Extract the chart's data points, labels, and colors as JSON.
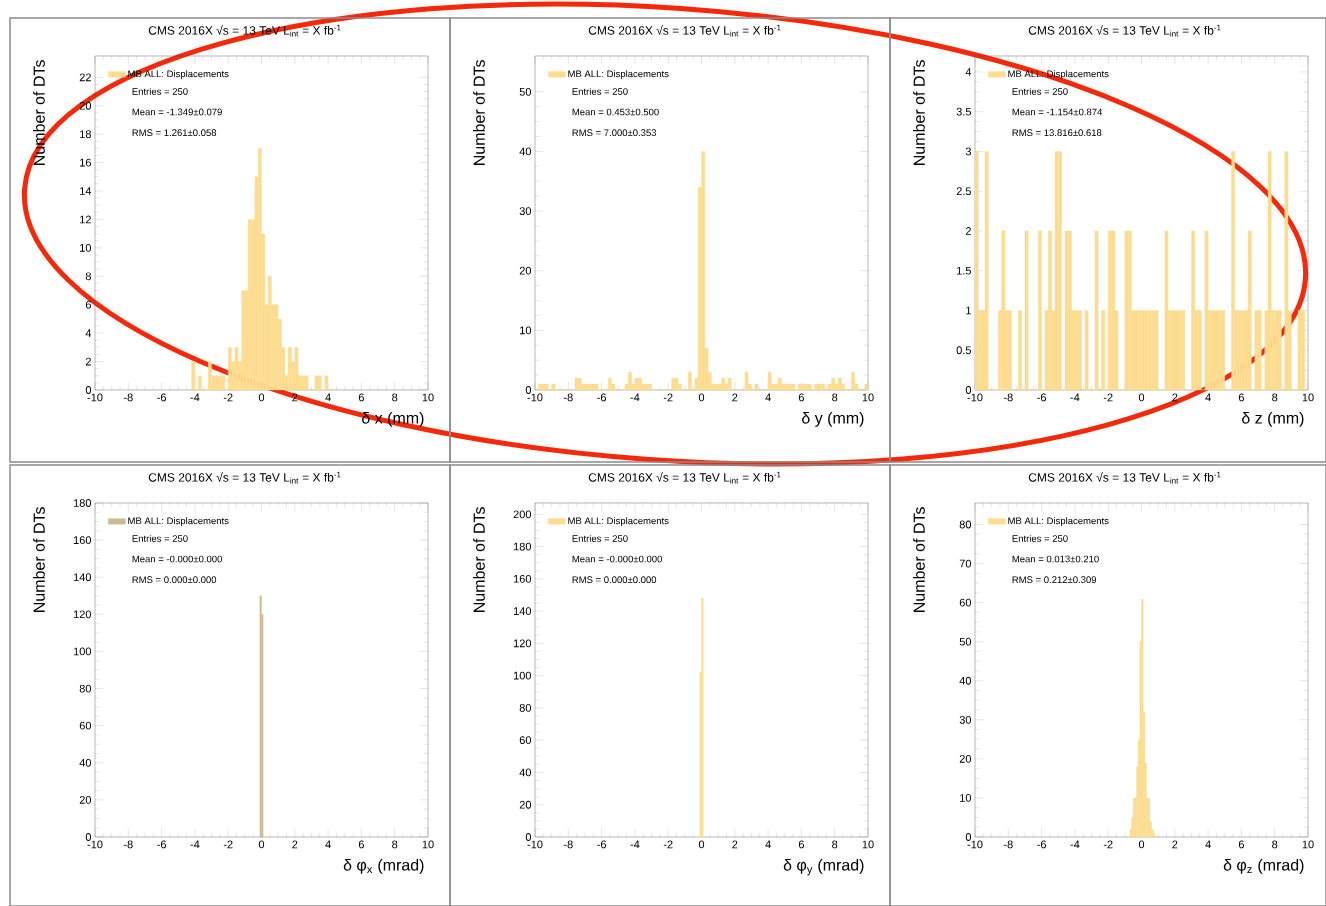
{
  "chart_data": [
    {
      "type": "histogram",
      "title": "CMS 2016X    √s = 13 TeV    L$_{int}$ = X fb$^{-1}$",
      "xlabel": "δ x (mm)",
      "ylabel": "Number of DTs",
      "legend": "top left",
      "annotations": [
        "Entries = 250",
        "Mean = -1.349±0.079",
        "RMS = 1.261±0.058"
      ],
      "bins": [
        -4.4,
        -4.2,
        -4.0,
        -3.8,
        -3.6,
        -3.4,
        -3.2,
        -3.0,
        -2.8,
        -2.6,
        -2.4,
        -2.2,
        -2.0,
        -1.8,
        -1.6,
        -1.4,
        -1.2,
        -1.0,
        -0.8,
        -0.6,
        -0.4,
        -0.2,
        0.0,
        0.2,
        0.4,
        0.6,
        0.8,
        1.0,
        1.2,
        1.4,
        1.6,
        1.8,
        2.0,
        2.2,
        2.4,
        2.6,
        2.8,
        3.0,
        3.2,
        3.4,
        3.6,
        3.8,
        4.0,
        4.2,
        4.4
      ],
      "series": [
        {
          "name": "MB ALL: Displacements",
          "color": "#fddc8f",
          "values": [
            0,
            2,
            0,
            1,
            0,
            0,
            2,
            1,
            1,
            1,
            1,
            0,
            3,
            2,
            3,
            2,
            7,
            7,
            12,
            12,
            15,
            17,
            11,
            6,
            8,
            6,
            6,
            5,
            3,
            1,
            3,
            2,
            3,
            1,
            1,
            1,
            0,
            0,
            1,
            1,
            0,
            1,
            0,
            0
          ]
        }
      ],
      "xlim": [
        -10,
        10
      ],
      "ylim": [
        0,
        23.5
      ],
      "xticks": [
        -10,
        -8,
        -6,
        -4,
        -2,
        0,
        2,
        4,
        6,
        8,
        10
      ],
      "yticks": [
        0,
        2,
        4,
        6,
        8,
        10,
        12,
        14,
        16,
        18,
        20,
        22
      ]
    },
    {
      "type": "histogram",
      "title": "CMS 2016X    √s = 13 TeV    L$_{int}$ = X fb$^{-1}$",
      "xlabel": "δ y (mm)",
      "ylabel": "Number of DTs",
      "legend": "top left",
      "annotations": [
        "Entries = 250",
        "Mean = 0.453±0.500",
        "RMS = 7.000±0.353"
      ],
      "bins": [
        -10.0,
        -9.8,
        -9.6,
        -9.4,
        -9.2,
        -9.0,
        -8.8,
        -8.6,
        -8.4,
        -8.2,
        -8.0,
        -7.8,
        -7.6,
        -7.4,
        -7.2,
        -7.0,
        -6.8,
        -6.6,
        -6.4,
        -6.2,
        -6.0,
        -5.8,
        -5.6,
        -5.4,
        -5.2,
        -5.0,
        -4.8,
        -4.6,
        -4.4,
        -4.2,
        -4.0,
        -3.8,
        -3.6,
        -3.4,
        -3.2,
        -3.0,
        -2.8,
        -2.6,
        -2.4,
        -2.2,
        -2.0,
        -1.8,
        -1.6,
        -1.4,
        -1.2,
        -1.0,
        -0.8,
        -0.6,
        -0.4,
        -0.2,
        0.0,
        0.2,
        0.4,
        0.6,
        0.8,
        1.0,
        1.2,
        1.4,
        1.6,
        1.8,
        2.0,
        2.2,
        2.4,
        2.6,
        2.8,
        3.0,
        3.2,
        3.4,
        3.6,
        3.8,
        4.0,
        4.2,
        4.4,
        4.6,
        4.8,
        5.0,
        5.2,
        5.4,
        5.6,
        5.8,
        6.0,
        6.2,
        6.4,
        6.6,
        6.8,
        7.0,
        7.2,
        7.4,
        7.6,
        7.8,
        8.0,
        8.2,
        8.4,
        8.6,
        8.8,
        9.0,
        9.2,
        9.4,
        9.6,
        9.8,
        10.0
      ],
      "series": [
        {
          "name": "MB ALL: Displacements",
          "color": "#fddc8f",
          "values": [
            0,
            1,
            1,
            1,
            0,
            1,
            0,
            0,
            0,
            0,
            0,
            0,
            2,
            2,
            1,
            1,
            1,
            1,
            1,
            0,
            0,
            0,
            2,
            1,
            0,
            0,
            0,
            1,
            3,
            1,
            2,
            2,
            1,
            1,
            1,
            0,
            0,
            0,
            0,
            0,
            0,
            2,
            2,
            1,
            0,
            0,
            3,
            0,
            2,
            34,
            40,
            7,
            3,
            1,
            1,
            1,
            2,
            1,
            2,
            0,
            0,
            0,
            0,
            3,
            1,
            0,
            1,
            0,
            0,
            0,
            3,
            1,
            1,
            2,
            1,
            1,
            1,
            1,
            0,
            1,
            1,
            1,
            1,
            0,
            1,
            1,
            1,
            0,
            1,
            2,
            1,
            2,
            1,
            0,
            0,
            3,
            1,
            0,
            0,
            1
          ]
        }
      ],
      "xlim": [
        -10,
        10
      ],
      "ylim": [
        0,
        56
      ],
      "xticks": [
        -10,
        -8,
        -6,
        -4,
        -2,
        0,
        2,
        4,
        6,
        8,
        10
      ],
      "yticks": [
        0,
        10,
        20,
        30,
        40,
        50
      ]
    },
    {
      "type": "histogram",
      "title": "CMS 2016X    √s = 13 TeV    L$_{int}$ = X fb$^{-1}$",
      "xlabel": "δ z (mm)",
      "ylabel": "Number of DTs",
      "legend": "top left",
      "annotations": [
        "Entries = 250",
        "Mean = -1.154±0.874",
        "RMS = 13.816±0.618"
      ],
      "bins": [
        -10.0,
        -9.8,
        -9.6,
        -9.4,
        -9.2,
        -9.0,
        -8.8,
        -8.6,
        -8.4,
        -8.2,
        -8.0,
        -7.8,
        -7.6,
        -7.4,
        -7.2,
        -7.0,
        -6.8,
        -6.6,
        -6.4,
        -6.2,
        -6.0,
        -5.8,
        -5.6,
        -5.4,
        -5.2,
        -5.0,
        -4.8,
        -4.6,
        -4.4,
        -4.2,
        -4.0,
        -3.8,
        -3.6,
        -3.4,
        -3.2,
        -3.0,
        -2.8,
        -2.6,
        -2.4,
        -2.2,
        -2.0,
        -1.8,
        -1.6,
        -1.4,
        -1.2,
        -1.0,
        -0.8,
        -0.6,
        -0.4,
        -0.2,
        0.0,
        0.2,
        0.4,
        0.6,
        0.8,
        1.0,
        1.2,
        1.4,
        1.6,
        1.8,
        2.0,
        2.2,
        2.4,
        2.6,
        2.8,
        3.0,
        3.2,
        3.4,
        3.6,
        3.8,
        4.0,
        4.2,
        4.4,
        4.6,
        4.8,
        5.0,
        5.2,
        5.4,
        5.6,
        5.8,
        6.0,
        6.2,
        6.4,
        6.6,
        6.8,
        7.0,
        7.2,
        7.4,
        7.6,
        7.8,
        8.0,
        8.2,
        8.4,
        8.6,
        8.8,
        9.0,
        9.2,
        9.4,
        9.6,
        9.8,
        10.0
      ],
      "series": [
        {
          "name": "MB ALL: Displacements",
          "color": "#fddc8f",
          "values": [
            3,
            1,
            1,
            3,
            0,
            0,
            0,
            1,
            2,
            1,
            1,
            0,
            0,
            1,
            0,
            2,
            0,
            0,
            0,
            2,
            0,
            1,
            2,
            1,
            3,
            3,
            0,
            2,
            2,
            1,
            1,
            1,
            0,
            1,
            0,
            0,
            2,
            0,
            1,
            0,
            2,
            2,
            1,
            0,
            0,
            2,
            2,
            1,
            1,
            1,
            1,
            1,
            1,
            1,
            1,
            0,
            0,
            2,
            1,
            1,
            1,
            1,
            1,
            0,
            0,
            2,
            1,
            1,
            0,
            2,
            1,
            1,
            1,
            1,
            1,
            0,
            0,
            3,
            1,
            1,
            1,
            1,
            2,
            0,
            1,
            1,
            0,
            1,
            3,
            1,
            1,
            1,
            0,
            3,
            1,
            0,
            0,
            1,
            1,
            0
          ]
        }
      ],
      "xlim": [
        -10,
        10
      ],
      "ylim": [
        0,
        4.2
      ],
      "xticks": [
        -10,
        -8,
        -6,
        -4,
        -2,
        0,
        2,
        4,
        6,
        8,
        10
      ],
      "yticks": [
        0,
        0.5,
        1,
        1.5,
        2,
        2.5,
        3,
        3.5,
        4
      ]
    },
    {
      "type": "histogram",
      "title": "CMS 2016X    √s = 13 TeV    L$_{int}$ = X fb$^{-1}$",
      "xlabel": "δ φ$_{x}$ (mrad)",
      "ylabel": "Number of DTs",
      "legend": "top left",
      "annotations": [
        "Entries = 250",
        "Mean = -0.000±0.000",
        "RMS = 0.000±0.000"
      ],
      "bins": [
        -0.1,
        0.0,
        0.1
      ],
      "series": [
        {
          "name": "MB ALL: Displacements",
          "color": "#cbbb95",
          "values": [
            130,
            120
          ]
        }
      ],
      "xlim": [
        -10,
        10
      ],
      "ylim": [
        0,
        180
      ],
      "xticks": [
        -10,
        -8,
        -6,
        -4,
        -2,
        0,
        2,
        4,
        6,
        8,
        10
      ],
      "yticks": [
        0,
        20,
        40,
        60,
        80,
        100,
        120,
        140,
        160,
        180
      ]
    },
    {
      "type": "histogram",
      "title": "CMS 2016X    √s = 13 TeV    L$_{int}$ = X fb$^{-1}$",
      "xlabel": "δ φ$_{y}$ (mrad)",
      "ylabel": "Number of DTs",
      "legend": "top left",
      "annotations": [
        "Entries = 250",
        "Mean = -0.000±0.000",
        "RMS = 0.000±0.000"
      ],
      "bins": [
        -0.1,
        0.0,
        0.1
      ],
      "series": [
        {
          "name": "MB ALL: Displacements",
          "color": "#fddc8f",
          "values": [
            102,
            148
          ]
        }
      ],
      "xlim": [
        -10,
        10
      ],
      "ylim": [
        0,
        207
      ],
      "xticks": [
        -10,
        -8,
        -6,
        -4,
        -2,
        0,
        2,
        4,
        6,
        8,
        10
      ],
      "yticks": [
        0,
        20,
        40,
        60,
        80,
        100,
        120,
        140,
        160,
        180,
        200
      ]
    },
    {
      "type": "histogram",
      "title": "CMS 2016X    √s = 13 TeV    L$_{int}$ = X fb$^{-1}$",
      "xlabel": "δ φ$_{z}$ (mrad)",
      "ylabel": "Number of DTs",
      "legend": "top left",
      "annotations": [
        "Entries = 250",
        "Mean = 0.013±0.210",
        "RMS = 0.212±0.309"
      ],
      "bins": [
        -0.7,
        -0.6,
        -0.5,
        -0.4,
        -0.3,
        -0.2,
        -0.1,
        0.0,
        0.1,
        0.2,
        0.3,
        0.4,
        0.5,
        0.6,
        0.7,
        0.8
      ],
      "series": [
        {
          "name": "MB ALL: Displacements",
          "color": "#fddc8f",
          "values": [
            2,
            5,
            10,
            10,
            18,
            25,
            50,
            61,
            32,
            19,
            10,
            10,
            4,
            2,
            1
          ]
        }
      ],
      "xlim": [
        -10,
        10
      ],
      "ylim": [
        0,
        85.5
      ],
      "xticks": [
        -10,
        -8,
        -6,
        -4,
        -2,
        0,
        2,
        4,
        6,
        8,
        10
      ],
      "yticks": [
        0,
        10,
        20,
        30,
        40,
        50,
        60,
        70,
        80
      ]
    }
  ]
}
